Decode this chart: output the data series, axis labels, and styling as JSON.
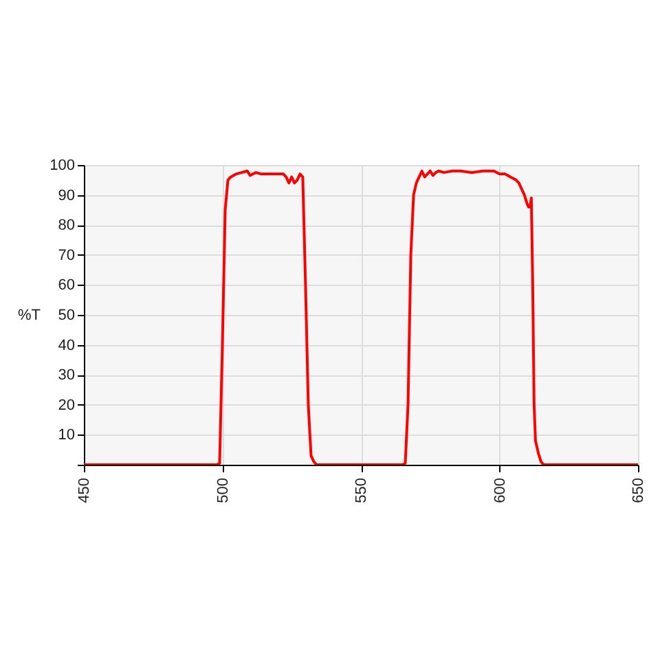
{
  "chart_data": {
    "type": "line",
    "ylabel": "%T",
    "xlim": [
      450,
      650
    ],
    "ylim": [
      0,
      100
    ],
    "xticks": [
      450,
      500,
      550,
      600,
      650
    ],
    "yticks": [
      {
        "value": 0,
        "label": null
      },
      10,
      20,
      30,
      40,
      50,
      60,
      70,
      80,
      90,
      100
    ],
    "grid": true,
    "marker": "none",
    "line_style": "solid",
    "x": [
      450,
      498,
      499,
      500,
      501,
      502,
      503,
      505,
      507,
      509,
      510,
      512,
      514,
      516,
      518,
      520,
      522,
      523,
      524,
      525,
      526,
      527,
      528,
      529,
      530,
      531,
      532,
      533,
      534,
      550,
      565,
      566,
      567,
      568,
      569,
      570,
      571,
      572,
      573,
      574,
      575,
      576,
      577,
      578,
      580,
      583,
      586,
      590,
      594,
      598,
      600,
      602,
      604,
      606,
      607,
      608,
      609,
      610,
      610.5,
      611,
      611.5,
      612,
      612.5,
      613,
      614,
      615,
      616,
      617,
      650
    ],
    "series": [
      {
        "color": "#ff0000",
        "values": [
          0,
          0,
          0.5,
          40,
          85,
          95,
          96,
          97,
          97.5,
          98,
          96.5,
          97.5,
          97,
          97,
          97,
          97,
          97,
          96,
          94,
          96,
          94,
          95,
          97,
          96,
          60,
          20,
          3,
          1,
          0,
          0,
          0,
          0.5,
          20,
          70,
          90,
          94,
          96,
          98,
          96,
          97,
          98,
          96.5,
          97.5,
          98,
          97.5,
          98,
          98,
          97.5,
          98,
          98,
          97,
          97,
          96,
          95,
          94,
          92,
          90,
          87,
          86,
          86,
          89,
          60,
          20,
          8,
          4,
          1,
          0,
          0,
          0
        ]
      }
    ]
  }
}
